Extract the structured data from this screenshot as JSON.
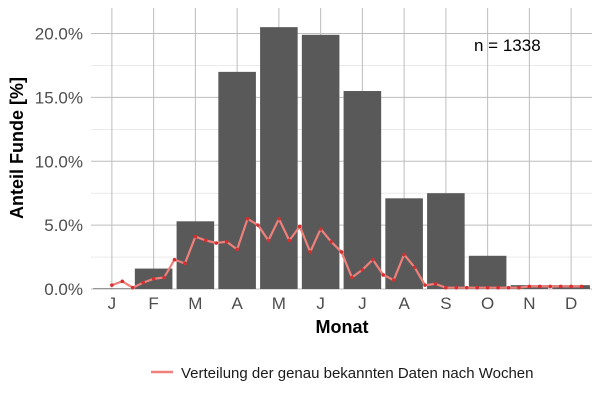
{
  "chart_data": {
    "type": "bar",
    "xlabel": "Monat",
    "ylabel": "Anteil Funde [%]",
    "annotation": "n = 1338",
    "categories": [
      "J",
      "F",
      "M",
      "A",
      "M",
      "J",
      "J",
      "A",
      "S",
      "O",
      "N",
      "D"
    ],
    "ylim": [
      0,
      22
    ],
    "yticks": [
      0,
      5,
      10,
      15,
      20
    ],
    "ytick_labels": [
      "0.0%",
      "5.0%",
      "10.0%",
      "15.0%",
      "20.0%"
    ],
    "grid": true,
    "series": [
      {
        "type": "bar",
        "values": [
          0.05,
          1.6,
          5.3,
          17.0,
          20.5,
          19.9,
          15.5,
          7.1,
          7.5,
          2.6,
          0.3,
          0.3
        ],
        "color": "#595959"
      },
      {
        "type": "line",
        "name": "Verteilung der genau bekannten Daten nach Wochen",
        "color": "#ef7f7b",
        "point_color": "#d62f2f",
        "x": [
          1.0,
          1.25,
          1.5,
          1.75,
          2.0,
          2.25,
          2.5,
          2.75,
          3.0,
          3.25,
          3.5,
          3.75,
          4.0,
          4.25,
          4.5,
          4.75,
          5.0,
          5.25,
          5.5,
          5.75,
          6.0,
          6.25,
          6.5,
          6.75,
          7.0,
          7.25,
          7.5,
          7.75,
          8.0,
          8.25,
          8.5,
          8.75,
          9.0,
          9.25,
          9.5,
          9.75,
          10.0,
          10.25,
          10.5,
          10.75,
          11.0,
          11.25,
          11.5,
          11.75,
          12.0,
          12.25
        ],
        "values": [
          0.3,
          0.6,
          0.1,
          0.5,
          0.8,
          0.9,
          2.3,
          2.0,
          4.1,
          3.8,
          3.6,
          3.7,
          3.1,
          5.5,
          5.0,
          3.8,
          5.5,
          3.8,
          4.9,
          2.9,
          4.7,
          3.7,
          2.9,
          0.9,
          1.5,
          2.3,
          1.1,
          0.7,
          2.7,
          1.7,
          0.3,
          0.4,
          0.1,
          0.1,
          0.1,
          0.1,
          0.1,
          0.1,
          0.1,
          0.1,
          0.2,
          0.2,
          0.2,
          0.2,
          0.2,
          0.2
        ]
      }
    ],
    "legend": {
      "position": "bottom",
      "entries": [
        "Verteilung der genau bekannten Daten nach Wochen"
      ]
    }
  }
}
